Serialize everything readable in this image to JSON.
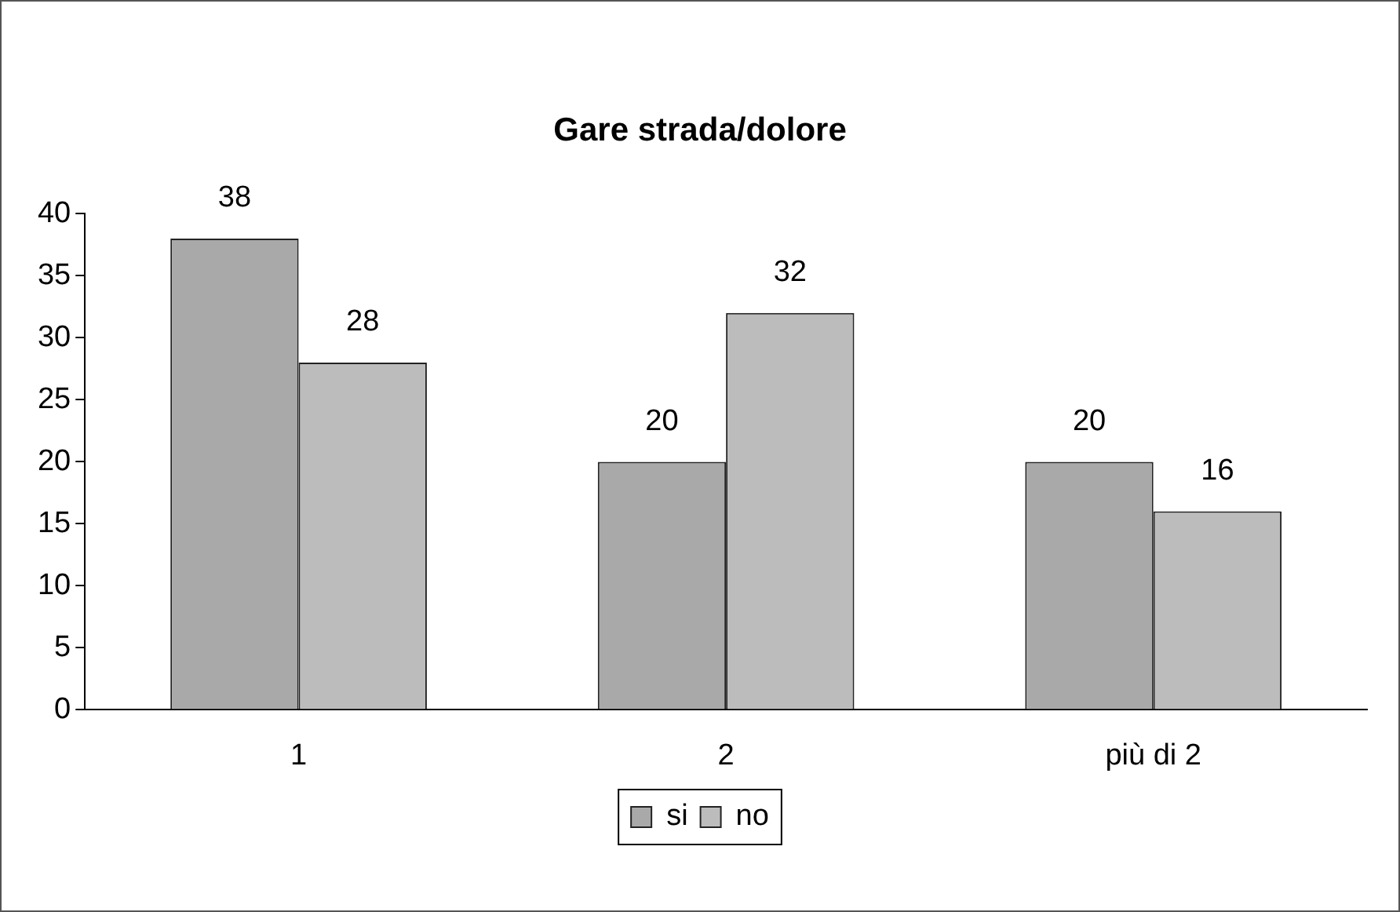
{
  "chart_data": {
    "type": "bar",
    "title": "Gare strada/dolore",
    "categories": [
      "1",
      "2",
      "più di 2"
    ],
    "series": [
      {
        "name": "si",
        "color": "#a9a9a9",
        "values": [
          38,
          20,
          20
        ]
      },
      {
        "name": "no",
        "color": "#bcbcbc",
        "values": [
          28,
          32,
          16
        ]
      }
    ],
    "ylim": [
      0,
      40
    ],
    "yticks": [
      0,
      5,
      10,
      15,
      20,
      25,
      30,
      35,
      40
    ],
    "grid": false,
    "legend": "bottom",
    "data_labels": true
  }
}
